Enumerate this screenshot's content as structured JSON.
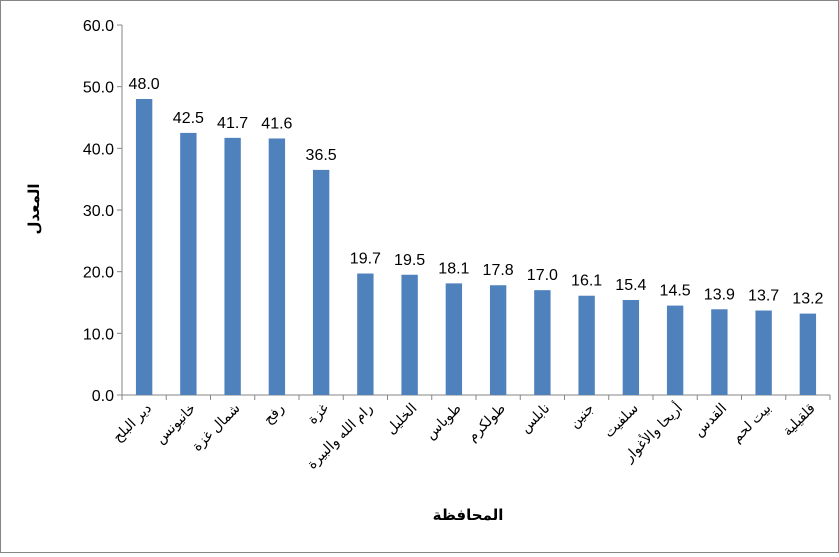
{
  "chart_data": {
    "type": "bar",
    "title": "",
    "xlabel": "المحافظة",
    "ylabel": "المعدل",
    "ylim": [
      0,
      60
    ],
    "yticks": [
      "0.0",
      "10.0",
      "20.0",
      "30.0",
      "40.0",
      "50.0",
      "60.0"
    ],
    "grid": false,
    "legend": "none",
    "bar_color": "#4F81BD",
    "categories": [
      "دير البلح",
      "خانيونس",
      "شمال غزة",
      "رفح",
      "غزة",
      "رام الله والبيرة",
      "الخليل",
      "طوباس",
      "طولكرم",
      "نابلس",
      "جنين",
      "سلفيت",
      "أريحا والأغوار",
      "القدس",
      "بيت لحم",
      "قلقيلية"
    ],
    "values": [
      48.0,
      42.5,
      41.7,
      41.6,
      36.5,
      19.7,
      19.5,
      18.1,
      17.8,
      17.0,
      16.1,
      15.4,
      14.5,
      13.9,
      13.7,
      13.2
    ],
    "value_labels": [
      "48.0",
      "42.5",
      "41.7",
      "41.6",
      "36.5",
      "19.7",
      "19.5",
      "18.1",
      "17.8",
      "17.0",
      "16.1",
      "15.4",
      "14.5",
      "13.9",
      "13.7",
      "13.2"
    ]
  }
}
